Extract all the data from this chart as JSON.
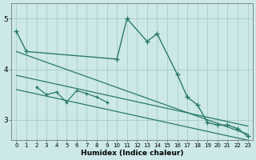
{
  "color": "#2a7a6a",
  "bg_color": "#cce8e8",
  "grid_color": "#a8cccc",
  "xlabel": "Humidex (Indice chaleur)",
  "ylim": [
    2.6,
    5.3
  ],
  "xlim": [
    -0.5,
    23.5
  ],
  "yticks": [
    3,
    4,
    5
  ],
  "xticks": [
    0,
    1,
    2,
    3,
    4,
    5,
    6,
    7,
    8,
    9,
    10,
    11,
    12,
    13,
    14,
    15,
    16,
    17,
    18,
    19,
    20,
    21,
    22,
    23
  ],
  "main_x": [
    0,
    1,
    10,
    11,
    13,
    14,
    16,
    17,
    18,
    19,
    20,
    21,
    22,
    23
  ],
  "main_y": [
    4.75,
    4.35,
    4.2,
    5.0,
    4.55,
    4.7,
    3.9,
    3.45,
    3.3,
    2.95,
    2.9,
    2.9,
    2.83,
    2.68
  ],
  "wavy_x": [
    2,
    3,
    4,
    5,
    6,
    7,
    8,
    9
  ],
  "wavy_y": [
    3.65,
    3.5,
    3.55,
    3.35,
    3.58,
    3.52,
    3.45,
    3.35
  ],
  "upper_line": {
    "x0": 0,
    "x1": 23,
    "y0": 4.35,
    "y1": 2.72
  },
  "mid_line": {
    "x0": 0,
    "x1": 23,
    "y0": 3.88,
    "y1": 2.88
  },
  "lower_line": {
    "x0": 0,
    "x1": 23,
    "y0": 3.6,
    "y1": 2.6
  }
}
